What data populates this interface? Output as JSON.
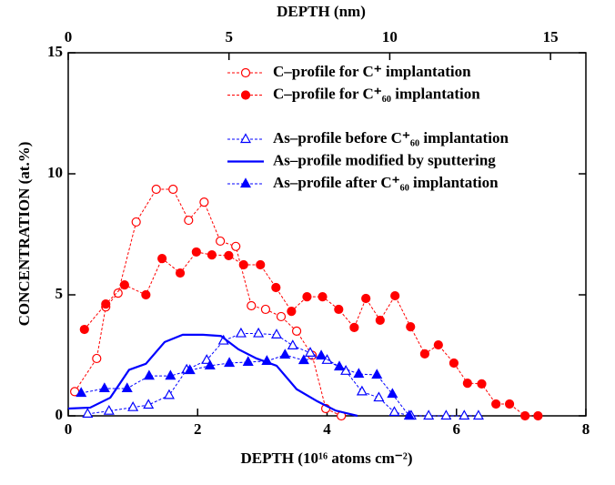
{
  "chart_data": {
    "type": "line",
    "x_label": "DEPTH  (10¹⁶ atoms cm⁻²)",
    "x2_label": "DEPTH  (nm)",
    "y_label": "CONCENTRATION  (at.%)",
    "xlim": [
      0,
      8
    ],
    "xticks": [
      0,
      2,
      4,
      6,
      8
    ],
    "x2lim": [
      0,
      16.1
    ],
    "x2ticks": [
      0,
      5,
      10,
      15
    ],
    "ylim": [
      0,
      15
    ],
    "yticks": [
      0,
      5,
      10,
      15
    ],
    "legend": "upper right",
    "series": [
      {
        "name": "C–profile for C⁺ implantation",
        "color": "#ff0000",
        "marker": "circle-open",
        "dash": true,
        "x": [
          0.1,
          0.44,
          0.58,
          0.77,
          1.05,
          1.36,
          1.62,
          1.86,
          2.1,
          2.35,
          2.59,
          2.83,
          3.05,
          3.29,
          3.53,
          3.77,
          3.98,
          4.22
        ],
        "values": [
          1.0,
          2.37,
          4.5,
          5.07,
          8.01,
          9.36,
          9.36,
          8.08,
          8.83,
          7.22,
          7.0,
          4.55,
          4.4,
          4.1,
          3.5,
          2.5,
          0.3,
          0
        ]
      },
      {
        "name": "C–profile for C⁺₆₀ implantation",
        "color": "#ff0000",
        "marker": "circle-filled",
        "dash": true,
        "x": [
          0.25,
          0.58,
          0.87,
          1.2,
          1.45,
          1.73,
          1.98,
          2.22,
          2.48,
          2.71,
          2.97,
          3.21,
          3.45,
          3.69,
          3.93,
          4.18,
          4.42,
          4.6,
          4.82,
          5.05,
          5.29,
          5.51,
          5.72,
          5.96,
          6.17,
          6.39,
          6.61,
          6.82,
          7.06,
          7.26
        ],
        "values": [
          3.57,
          4.62,
          5.41,
          5.0,
          6.5,
          5.9,
          6.77,
          6.65,
          6.62,
          6.24,
          6.24,
          5.3,
          4.32,
          4.92,
          4.92,
          4.4,
          3.65,
          4.85,
          3.95,
          4.96,
          3.68,
          2.56,
          2.93,
          2.18,
          1.35,
          1.32,
          0.49,
          0.49,
          0,
          0
        ]
      },
      {
        "name": "As–profile before C⁺₆₀ implantation",
        "color": "#0000ff",
        "marker": "triangle-open",
        "dash": true,
        "x": [
          0.3,
          0.63,
          1.0,
          1.24,
          1.56,
          1.83,
          2.14,
          2.4,
          2.67,
          2.94,
          3.22,
          3.47,
          3.74,
          4.0,
          4.29,
          4.54,
          4.8,
          5.04,
          5.3,
          5.57,
          5.84,
          6.12,
          6.34
        ],
        "values": [
          0.08,
          0.2,
          0.35,
          0.45,
          0.85,
          1.9,
          2.3,
          3.1,
          3.4,
          3.4,
          3.35,
          2.9,
          2.6,
          2.3,
          1.85,
          1.0,
          0.75,
          0.15,
          0,
          0,
          0,
          0,
          0
        ]
      },
      {
        "name": "As–profile modified by sputtering",
        "color": "#0000ff",
        "marker": "none",
        "dash": false,
        "x": [
          0,
          0.34,
          0.65,
          0.94,
          1.2,
          1.49,
          1.77,
          2.08,
          2.36,
          2.63,
          2.91,
          3.22,
          3.53,
          3.85,
          4.13,
          4.47
        ],
        "values": [
          0.3,
          0.34,
          0.75,
          1.9,
          2.15,
          3.05,
          3.35,
          3.35,
          3.3,
          2.75,
          2.37,
          2.07,
          1.1,
          0.6,
          0.22,
          0
        ]
      },
      {
        "name": "As–profile after C⁺₆₀ implantation",
        "color": "#0000ff",
        "marker": "triangle-filled",
        "dash": true,
        "x": [
          0.2,
          0.56,
          0.91,
          1.25,
          1.58,
          1.88,
          2.19,
          2.49,
          2.78,
          3.07,
          3.35,
          3.64,
          3.91,
          4.19,
          4.49,
          4.77,
          5.01,
          5.27
        ],
        "values": [
          0.94,
          1.13,
          1.13,
          1.65,
          1.65,
          1.88,
          2.07,
          2.18,
          2.22,
          2.26,
          2.52,
          2.29,
          2.48,
          2.03,
          1.73,
          1.69,
          0.9,
          0
        ]
      }
    ]
  }
}
